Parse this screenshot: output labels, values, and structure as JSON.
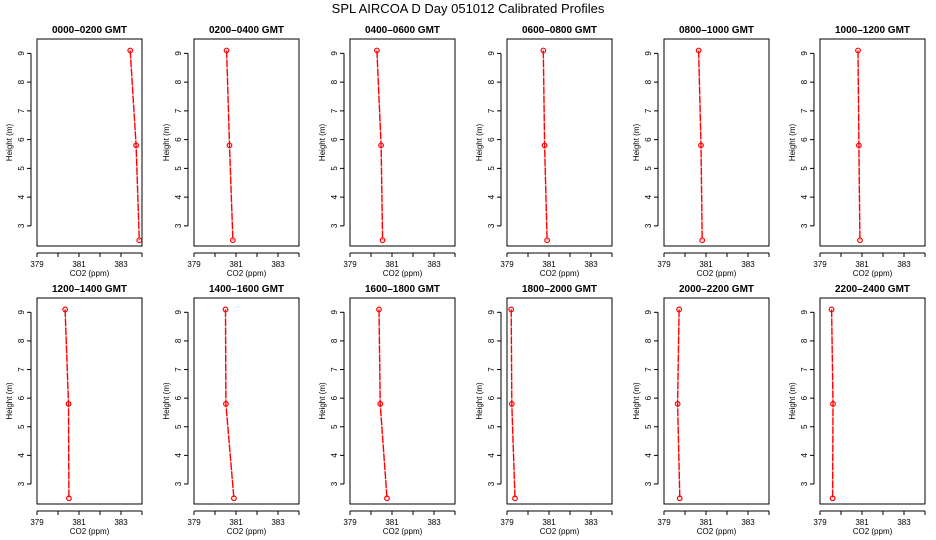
{
  "title": "SPL AIRCOA D  Day 051012  Calibrated Profiles",
  "colors": {
    "series": "#ff0000",
    "axis": "#000000",
    "background": "#ffffff"
  },
  "chart_data": [
    {
      "type": "line",
      "title": "0000–0200 GMT",
      "xlabel": "CO2 (ppm)",
      "ylabel": "Height (m)",
      "xlim": [
        379,
        384
      ],
      "ylim": [
        2.3,
        9.5
      ],
      "xticks": [
        "379",
        "381",
        "383"
      ],
      "yticks": [
        "3",
        "4",
        "5",
        "6",
        "7",
        "8",
        "9"
      ],
      "x": [
        383.44,
        383.72,
        383.87
      ],
      "y": [
        9.1,
        5.8,
        2.5
      ]
    },
    {
      "type": "line",
      "title": "0200–0400 GMT",
      "xlabel": "CO2 (ppm)",
      "ylabel": "Height (m)",
      "xlim": [
        379,
        384
      ],
      "ylim": [
        2.3,
        9.5
      ],
      "xticks": [
        "379",
        "381",
        "383"
      ],
      "yticks": [
        "3",
        "4",
        "5",
        "6",
        "7",
        "8",
        "9"
      ],
      "x": [
        380.55,
        380.69,
        380.85
      ],
      "y": [
        9.1,
        5.8,
        2.5
      ]
    },
    {
      "type": "line",
      "title": "0400–0600 GMT",
      "xlabel": "CO2 (ppm)",
      "ylabel": "Height (m)",
      "xlim": [
        379,
        384
      ],
      "ylim": [
        2.3,
        9.5
      ],
      "xticks": [
        "379",
        "381",
        "383"
      ],
      "yticks": [
        "3",
        "4",
        "5",
        "6",
        "7",
        "8",
        "9"
      ],
      "x": [
        380.28,
        380.48,
        380.55
      ],
      "y": [
        9.1,
        5.8,
        2.5
      ]
    },
    {
      "type": "line",
      "title": "0600–0800 GMT",
      "xlabel": "CO2 (ppm)",
      "ylabel": "Height (m)",
      "xlim": [
        379,
        384
      ],
      "ylim": [
        2.3,
        9.5
      ],
      "xticks": [
        "379",
        "381",
        "383"
      ],
      "yticks": [
        "3",
        "4",
        "5",
        "6",
        "7",
        "8",
        "9"
      ],
      "x": [
        380.73,
        380.79,
        380.91
      ],
      "y": [
        9.1,
        5.8,
        2.5
      ]
    },
    {
      "type": "line",
      "title": "0800–1000 GMT",
      "xlabel": "CO2 (ppm)",
      "ylabel": "Height (m)",
      "xlim": [
        379,
        384
      ],
      "ylim": [
        2.3,
        9.5
      ],
      "xticks": [
        "379",
        "381",
        "383"
      ],
      "yticks": [
        "3",
        "4",
        "5",
        "6",
        "7",
        "8",
        "9"
      ],
      "x": [
        380.65,
        380.76,
        380.82
      ],
      "y": [
        9.1,
        5.8,
        2.5
      ]
    },
    {
      "type": "line",
      "title": "1000–1200 GMT",
      "xlabel": "CO2 (ppm)",
      "ylabel": "Height (m)",
      "xlim": [
        379,
        384
      ],
      "ylim": [
        2.3,
        9.5
      ],
      "xticks": [
        "379",
        "381",
        "383"
      ],
      "yticks": [
        "3",
        "4",
        "5",
        "6",
        "7",
        "8",
        "9"
      ],
      "x": [
        380.81,
        380.85,
        380.9
      ],
      "y": [
        9.1,
        5.8,
        2.5
      ]
    },
    {
      "type": "line",
      "title": "1200–1400 GMT",
      "xlabel": "CO2 (ppm)",
      "ylabel": "Height (m)",
      "xlim": [
        379,
        384
      ],
      "ylim": [
        2.3,
        9.5
      ],
      "xticks": [
        "379",
        "381",
        "383"
      ],
      "yticks": [
        "3",
        "4",
        "5",
        "6",
        "7",
        "8",
        "9"
      ],
      "x": [
        380.34,
        380.5,
        380.52
      ],
      "y": [
        9.1,
        5.8,
        2.5
      ]
    },
    {
      "type": "line",
      "title": "1400–1600 GMT",
      "xlabel": "CO2 (ppm)",
      "ylabel": "Height (m)",
      "xlim": [
        379,
        384
      ],
      "ylim": [
        2.3,
        9.5
      ],
      "xticks": [
        "379",
        "381",
        "383"
      ],
      "yticks": [
        "3",
        "4",
        "5",
        "6",
        "7",
        "8",
        "9"
      ],
      "x": [
        380.5,
        380.52,
        380.9
      ],
      "y": [
        9.1,
        5.8,
        2.5
      ]
    },
    {
      "type": "line",
      "title": "1600–1800 GMT",
      "xlabel": "CO2 (ppm)",
      "ylabel": "Height (m)",
      "xlim": [
        379,
        384
      ],
      "ylim": [
        2.3,
        9.5
      ],
      "xticks": [
        "379",
        "381",
        "383"
      ],
      "yticks": [
        "3",
        "4",
        "5",
        "6",
        "7",
        "8",
        "9"
      ],
      "x": [
        380.38,
        380.44,
        380.76
      ],
      "y": [
        9.1,
        5.8,
        2.5
      ]
    },
    {
      "type": "line",
      "title": "1800–2000 GMT",
      "xlabel": "CO2 (ppm)",
      "ylabel": "Height (m)",
      "xlim": [
        379,
        384
      ],
      "ylim": [
        2.3,
        9.5
      ],
      "xticks": [
        "379",
        "381",
        "383"
      ],
      "yticks": [
        "3",
        "4",
        "5",
        "6",
        "7",
        "8",
        "9"
      ],
      "x": [
        379.2,
        379.23,
        379.38
      ],
      "y": [
        9.1,
        5.8,
        2.5
      ]
    },
    {
      "type": "line",
      "title": "2000–2200 GMT",
      "xlabel": "CO2 (ppm)",
      "ylabel": "Height (m)",
      "xlim": [
        379,
        384
      ],
      "ylim": [
        2.3,
        9.5
      ],
      "xticks": [
        "379",
        "381",
        "383"
      ],
      "yticks": [
        "3",
        "4",
        "5",
        "6",
        "7",
        "8",
        "9"
      ],
      "x": [
        379.72,
        379.65,
        379.75
      ],
      "y": [
        9.1,
        5.8,
        2.5
      ]
    },
    {
      "type": "line",
      "title": "2200–2400 GMT",
      "xlabel": "CO2 (ppm)",
      "ylabel": "Height (m)",
      "xlim": [
        379,
        384
      ],
      "ylim": [
        2.3,
        9.5
      ],
      "xticks": [
        "379",
        "381",
        "383"
      ],
      "yticks": [
        "3",
        "4",
        "5",
        "6",
        "7",
        "8",
        "9"
      ],
      "x": [
        379.55,
        379.62,
        379.6
      ],
      "y": [
        9.1,
        5.8,
        2.5
      ]
    }
  ]
}
